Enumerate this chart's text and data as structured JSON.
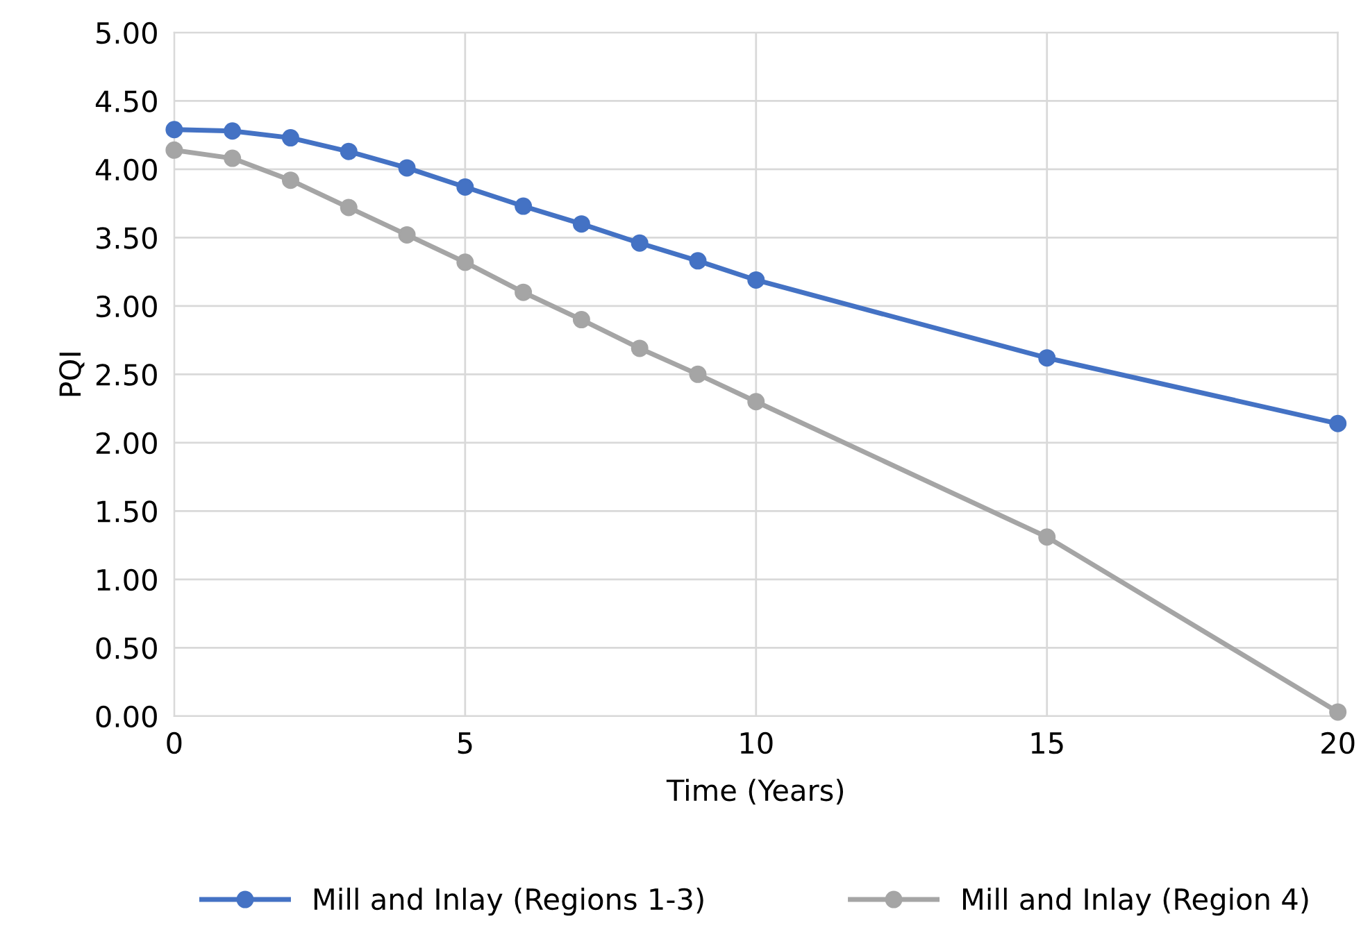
{
  "chart_data": {
    "type": "line",
    "xlabel": "Time (Years)",
    "ylabel": "PQI",
    "series": [
      {
        "name": "Mill and Inlay (Regions 1-3)",
        "color": "#4472c4",
        "x": [
          0,
          1,
          2,
          3,
          4,
          5,
          6,
          7,
          8,
          9,
          10,
          15,
          20
        ],
        "values": [
          4.29,
          4.28,
          4.23,
          4.13,
          4.01,
          3.87,
          3.73,
          3.6,
          3.46,
          3.33,
          3.19,
          2.62,
          2.14
        ]
      },
      {
        "name": "Mill and Inlay (Region 4)",
        "color": "#a5a5a5",
        "x": [
          0,
          1,
          2,
          3,
          4,
          5,
          6,
          7,
          8,
          9,
          10,
          15,
          20
        ],
        "values": [
          4.14,
          4.08,
          3.92,
          3.72,
          3.52,
          3.32,
          3.1,
          2.9,
          2.69,
          2.5,
          2.3,
          1.31,
          0.03
        ]
      }
    ],
    "xlim": [
      0,
      20
    ],
    "xticks": [
      0,
      5,
      10,
      15,
      20
    ],
    "ylim": [
      0,
      5
    ],
    "yticks": [
      {
        "value": 0,
        "label": "0.00"
      },
      {
        "value": 0.5,
        "label": "0.50"
      },
      {
        "value": 1,
        "label": "1.00"
      },
      {
        "value": 1.5,
        "label": "1.50"
      },
      {
        "value": 2,
        "label": "2.00"
      },
      {
        "value": 2.5,
        "label": "2.50"
      },
      {
        "value": 3,
        "label": "3.00"
      },
      {
        "value": 3.5,
        "label": "3.50"
      },
      {
        "value": 4,
        "label": "4.00"
      },
      {
        "value": 4.5,
        "label": "4.50"
      },
      {
        "value": 5,
        "label": "5.00"
      }
    ],
    "grid": true,
    "legend": "bottom",
    "marker": "circle",
    "line_style": "solid"
  }
}
